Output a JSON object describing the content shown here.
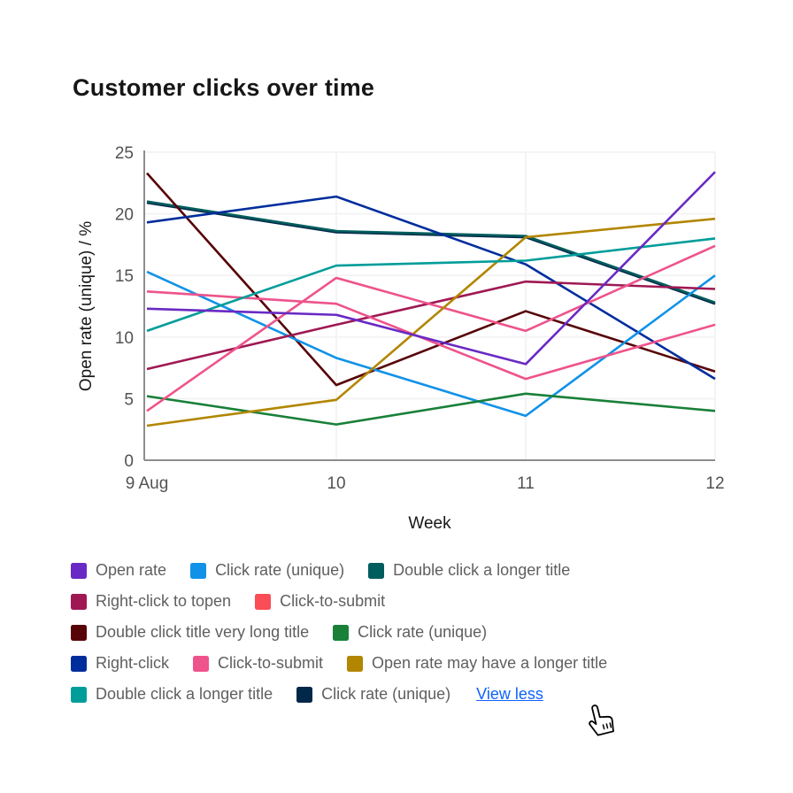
{
  "title": "Customer clicks over time",
  "chart_data": {
    "type": "line",
    "x_categories": [
      "9 Aug",
      "10",
      "11",
      "12"
    ],
    "xlabel": "Week",
    "ylabel": "Open rate (unique) / %",
    "ylim": [
      0,
      25
    ],
    "yticks": [
      0,
      5,
      10,
      15,
      20,
      25
    ],
    "grid": true,
    "legend_position": "bottom",
    "series": [
      {
        "name": "Open rate",
        "color": "#6929c4",
        "values": [
          12.3,
          11.8,
          7.8,
          23.4
        ]
      },
      {
        "name": "Click rate (unique)",
        "color": "#1192e8",
        "values": [
          15.3,
          8.3,
          3.6,
          15.0
        ]
      },
      {
        "name": "Double click a longer title",
        "color": "#005d5d",
        "values": [
          21.0,
          18.6,
          18.2,
          12.8
        ]
      },
      {
        "name": "Right-click to topen",
        "color": "#9f1853",
        "values": [
          7.4,
          11.0,
          14.5,
          13.9
        ]
      },
      {
        "name": "Click-to-submit",
        "color": "#fa4d56",
        "line_color": "#ee538b",
        "values": [
          13.7,
          12.7,
          6.6,
          11.0
        ]
      },
      {
        "name": "Double click title very long title",
        "color": "#570408",
        "values": [
          23.3,
          6.1,
          12.1,
          7.2
        ]
      },
      {
        "name": "Click rate (unique)",
        "color": "#198038",
        "values": [
          5.2,
          2.9,
          5.4,
          4.0
        ]
      },
      {
        "name": "Right-click",
        "color": "#002d9c",
        "values": [
          19.3,
          21.4,
          15.9,
          6.6
        ]
      },
      {
        "name": "Click-to-submit",
        "color": "#ee538b",
        "values": [
          4.0,
          14.8,
          10.5,
          17.4
        ]
      },
      {
        "name": "Open rate may have a longer title",
        "color": "#b28600",
        "values": [
          2.8,
          4.9,
          18.1,
          19.6
        ]
      },
      {
        "name": "Double click a longer title",
        "color": "#009d9a",
        "values": [
          10.5,
          15.8,
          16.2,
          18.0
        ]
      },
      {
        "name": "Click rate (unique)",
        "color": "#012749",
        "values": [
          20.9,
          18.5,
          18.1,
          12.7
        ]
      }
    ]
  },
  "legend": {
    "rows": [
      [
        0,
        1,
        2
      ],
      [
        3,
        4
      ],
      [
        5,
        6
      ],
      [
        7,
        8,
        9
      ],
      [
        10,
        11
      ]
    ],
    "view_less_label": "View less"
  },
  "colors": {
    "axis": "#8d8d8d",
    "grid": "#f2f2f2",
    "tick_label": "#525252",
    "axis_title": "#161616",
    "link": "#0f62fe"
  }
}
